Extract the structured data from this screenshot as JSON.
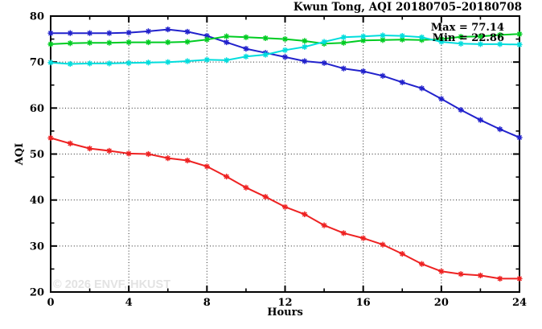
{
  "header": {
    "title": "Kwun Tong, AQI 20180705–20180708"
  },
  "annotations": {
    "max": "Max = 77.14",
    "min": "Min = 22.86"
  },
  "watermark": {
    "text": "© 2026 ENVF, HKUST",
    "color": "#e3e3e3"
  },
  "axes": {
    "x_label": "Hours",
    "y_label": "AQI"
  },
  "style": {
    "frame_color": "#000000",
    "grid_color": "#000000",
    "background": "#ffffff"
  },
  "chart_data": {
    "type": "line",
    "title": "Kwun Tong, AQI 20180705–20180708",
    "xlabel": "Hours",
    "ylabel": "AQI",
    "xlim": [
      0,
      24
    ],
    "ylim": [
      20,
      80
    ],
    "xticks": [
      0,
      4,
      8,
      12,
      16,
      20,
      24
    ],
    "xticks_minor": [
      2,
      6,
      10,
      14,
      18,
      22
    ],
    "yticks": [
      20,
      30,
      40,
      50,
      60,
      70,
      80
    ],
    "yticks_minor": [
      25,
      35,
      45,
      55,
      65,
      75
    ],
    "grid": true,
    "legend_position": "none",
    "marker": "asterisk",
    "annotations": [
      {
        "text": "Max = 77.14"
      },
      {
        "text": "Min = 22.86"
      }
    ],
    "x": [
      0,
      1,
      2,
      3,
      4,
      5,
      6,
      7,
      8,
      9,
      10,
      11,
      12,
      13,
      14,
      15,
      16,
      17,
      18,
      19,
      20,
      21,
      22,
      23,
      24
    ],
    "series": [
      {
        "name": "series-blue",
        "color": "#2222cc",
        "values": [
          76.3,
          76.3,
          76.3,
          76.3,
          76.4,
          76.7,
          77.1,
          76.6,
          75.7,
          74.3,
          72.9,
          72.0,
          71.1,
          70.2,
          69.8,
          68.6,
          68.0,
          67.0,
          65.6,
          64.3,
          62.0,
          59.6,
          57.4,
          55.4,
          53.6
        ]
      },
      {
        "name": "series-green",
        "color": "#00cc22",
        "values": [
          73.9,
          74.1,
          74.2,
          74.2,
          74.3,
          74.3,
          74.3,
          74.4,
          74.9,
          75.6,
          75.4,
          75.2,
          75.0,
          74.6,
          74.0,
          74.2,
          74.7,
          74.8,
          74.9,
          74.8,
          75.0,
          75.5,
          75.6,
          75.9,
          76.1
        ]
      },
      {
        "name": "series-cyan",
        "color": "#00dddd",
        "values": [
          69.9,
          69.6,
          69.7,
          69.7,
          69.8,
          69.9,
          70.0,
          70.2,
          70.5,
          70.4,
          71.2,
          71.6,
          72.6,
          73.3,
          74.4,
          75.4,
          75.6,
          75.8,
          75.7,
          75.4,
          74.4,
          74.0,
          73.9,
          73.9,
          73.8
        ]
      },
      {
        "name": "series-red",
        "color": "#ee2222",
        "values": [
          53.5,
          52.3,
          51.2,
          50.7,
          50.1,
          50.0,
          49.1,
          48.6,
          47.3,
          45.1,
          42.7,
          40.7,
          38.5,
          36.9,
          34.5,
          32.8,
          31.7,
          30.3,
          28.3,
          26.1,
          24.5,
          23.9,
          23.6,
          22.9,
          22.9
        ]
      }
    ]
  }
}
